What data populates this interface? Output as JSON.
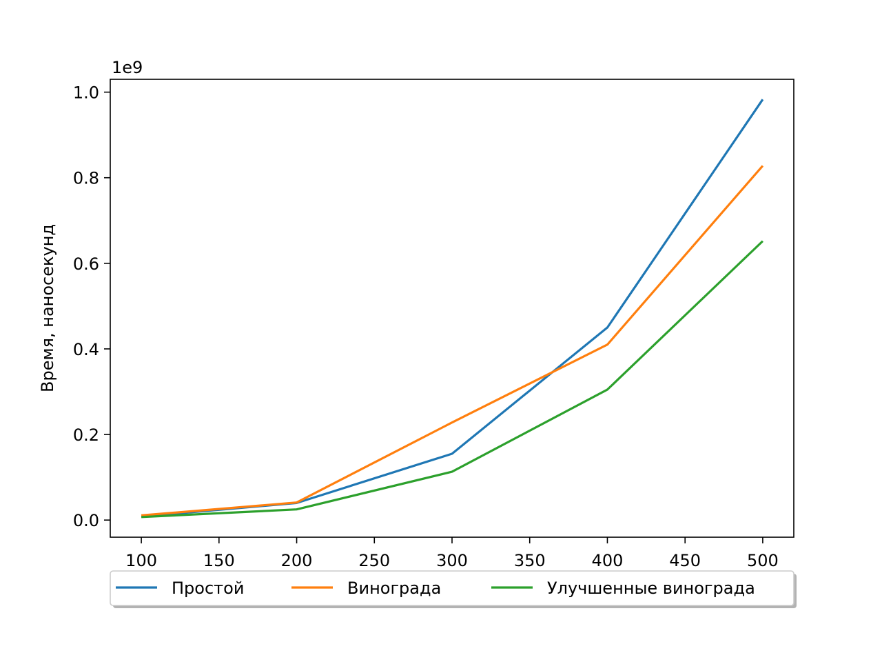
{
  "chart_data": {
    "type": "line",
    "title": "",
    "xlabel": "",
    "ylabel": "Время, наносекунд",
    "y_offset_label": "1e9",
    "x": [
      100,
      200,
      300,
      400,
      500
    ],
    "xlim": [
      80,
      520
    ],
    "ylim": [
      -0.04,
      1.03
    ],
    "x_ticks": [
      100,
      150,
      200,
      250,
      300,
      350,
      400,
      450,
      500
    ],
    "x_tick_labels": [
      "100",
      "150",
      "200",
      "250",
      "300",
      "350",
      "400",
      "450",
      "500"
    ],
    "y_ticks": [
      0.0,
      0.2,
      0.4,
      0.6,
      0.8,
      1.0
    ],
    "y_tick_labels": [
      "0.0",
      "0.2",
      "0.4",
      "0.6",
      "0.8",
      "1.0"
    ],
    "grid": false,
    "legend_position": "below",
    "series": [
      {
        "name": "Простой",
        "color": "#1f77b4",
        "values": [
          0.008,
          0.04,
          0.155,
          0.45,
          0.983
        ]
      },
      {
        "name": "Винограда",
        "color": "#ff7f0e",
        "values": [
          0.011,
          0.041,
          0.228,
          0.41,
          0.828
        ]
      },
      {
        "name": "Улучшенные винограда",
        "color": "#2ca02c",
        "values": [
          0.007,
          0.025,
          0.113,
          0.305,
          0.652
        ]
      }
    ]
  }
}
